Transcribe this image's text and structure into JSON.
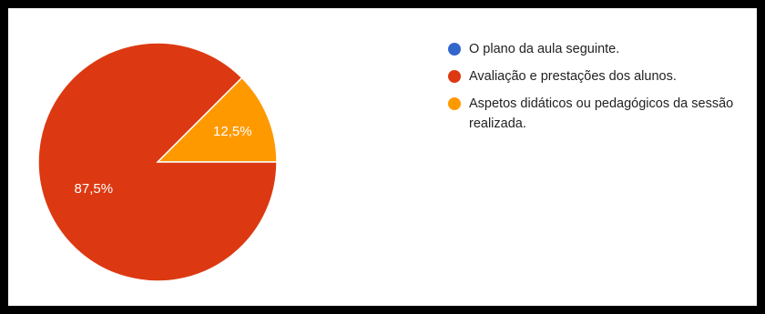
{
  "chart_data": {
    "type": "pie",
    "categories": [
      "O plano da aula seguinte.",
      "Avaliação e prestações dos alunos.",
      "Aspetos didáticos ou pedagógicos da sessão realizada."
    ],
    "values": [
      0,
      87.5,
      12.5
    ],
    "value_labels": [
      "",
      "87,5%",
      "12,5%"
    ],
    "colors": [
      "#3366cc",
      "#dc3912",
      "#ff9900"
    ],
    "legend": "right"
  }
}
